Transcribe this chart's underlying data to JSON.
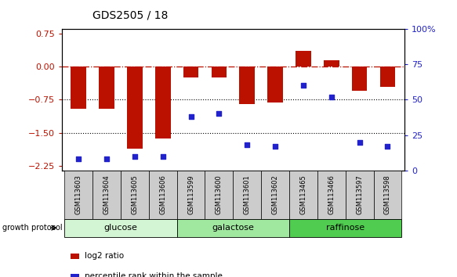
{
  "title": "GDS2505 / 18",
  "samples": [
    "GSM113603",
    "GSM113604",
    "GSM113605",
    "GSM113606",
    "GSM113599",
    "GSM113600",
    "GSM113601",
    "GSM113602",
    "GSM113465",
    "GSM113466",
    "GSM113597",
    "GSM113598"
  ],
  "log2_ratio": [
    -0.95,
    -0.95,
    -1.85,
    -1.62,
    -0.25,
    -0.25,
    -0.85,
    -0.82,
    0.35,
    0.15,
    -0.55,
    -0.45
  ],
  "percentile_rank": [
    8,
    8,
    10,
    10,
    38,
    40,
    18,
    17,
    60,
    52,
    20,
    17
  ],
  "groups": [
    {
      "label": "glucose",
      "start": 0,
      "end": 4,
      "color": "#d4f5d4"
    },
    {
      "label": "galactose",
      "start": 4,
      "end": 8,
      "color": "#a0e8a0"
    },
    {
      "label": "raffinose",
      "start": 8,
      "end": 12,
      "color": "#50cc50"
    }
  ],
  "ylim_left": [
    -2.35,
    0.85
  ],
  "ylim_right": [
    0,
    100
  ],
  "yticks_left": [
    0.75,
    0.0,
    -0.75,
    -1.5,
    -2.25
  ],
  "yticks_right": [
    100,
    75,
    50,
    25,
    0
  ],
  "hlines_dashdot": [
    0.0
  ],
  "hlines_dotted": [
    -0.75,
    -1.5
  ],
  "bar_color": "#bb1100",
  "dot_color": "#2222cc",
  "bar_width": 0.55,
  "label_box_color": "#cccccc",
  "growth_protocol_label": "growth protocol",
  "legend_items": [
    {
      "label": "log2 ratio",
      "color": "#bb1100"
    },
    {
      "label": "percentile rank within the sample",
      "color": "#2222cc"
    }
  ]
}
